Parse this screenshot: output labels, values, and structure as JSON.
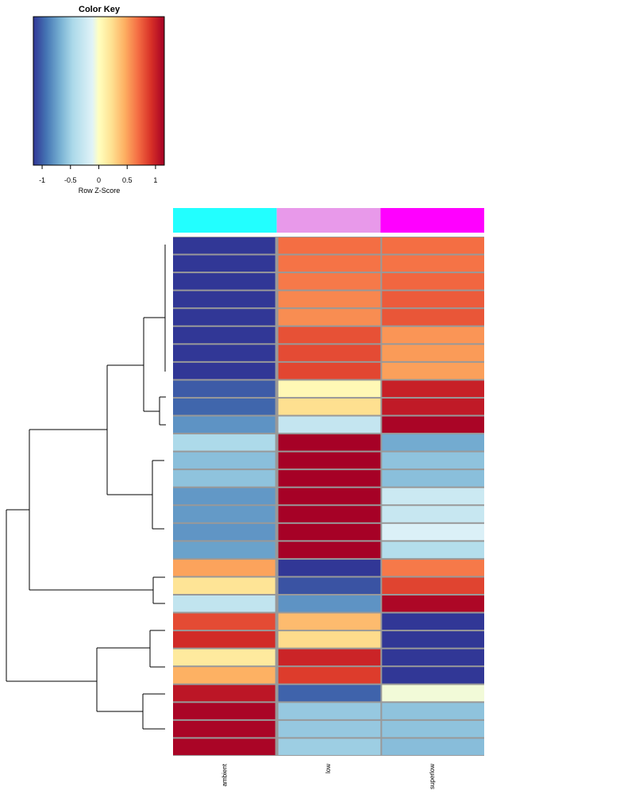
{
  "chart_data": {
    "type": "heatmap",
    "color_key": {
      "title": "Color Key",
      "xlabel": "Row Z-Score",
      "range": [
        -1.155,
        1.155
      ],
      "ticks": [
        -1,
        -0.5,
        0,
        0.5,
        1
      ],
      "tick_labels": [
        "-1",
        "-0.5",
        "0",
        "0.5",
        "1"
      ]
    },
    "columns": [
      "ambient",
      "low",
      "superlow"
    ],
    "column_side_colors": [
      "#22ffff",
      "#e899ea",
      "#ff00ff"
    ],
    "rows": [
      [
        -1.15,
        0.69,
        0.69
      ],
      [
        -1.15,
        0.67,
        0.67
      ],
      [
        -1.15,
        0.65,
        0.72
      ],
      [
        -1.15,
        0.6,
        0.76
      ],
      [
        -1.15,
        0.58,
        0.78
      ],
      [
        -1.15,
        0.8,
        0.55
      ],
      [
        -1.15,
        0.82,
        0.53
      ],
      [
        -1.15,
        0.84,
        0.51
      ],
      [
        -1.02,
        0.05,
        1.0
      ],
      [
        -0.98,
        0.23,
        1.03
      ],
      [
        -0.8,
        -0.3,
        1.13
      ],
      [
        -0.45,
        1.15,
        -0.7
      ],
      [
        -0.6,
        1.15,
        -0.58
      ],
      [
        -0.58,
        1.15,
        -0.6
      ],
      [
        -0.78,
        1.15,
        -0.25
      ],
      [
        -0.77,
        1.15,
        -0.28
      ],
      [
        -0.79,
        1.15,
        -0.15
      ],
      [
        -0.74,
        1.15,
        -0.4
      ],
      [
        0.5,
        -1.15,
        0.65
      ],
      [
        0.2,
        -1.05,
        0.85
      ],
      [
        -0.32,
        -0.8,
        1.12
      ],
      [
        0.82,
        0.4,
        -1.15
      ],
      [
        0.95,
        0.25,
        -1.15
      ],
      [
        0.16,
        0.98,
        -1.15
      ],
      [
        0.45,
        0.88,
        -1.15
      ],
      [
        1.05,
        -0.99,
        -0.05
      ],
      [
        1.13,
        -0.55,
        -0.58
      ],
      [
        1.13,
        -0.55,
        -0.58
      ],
      [
        1.13,
        -0.52,
        -0.61
      ]
    ]
  }
}
